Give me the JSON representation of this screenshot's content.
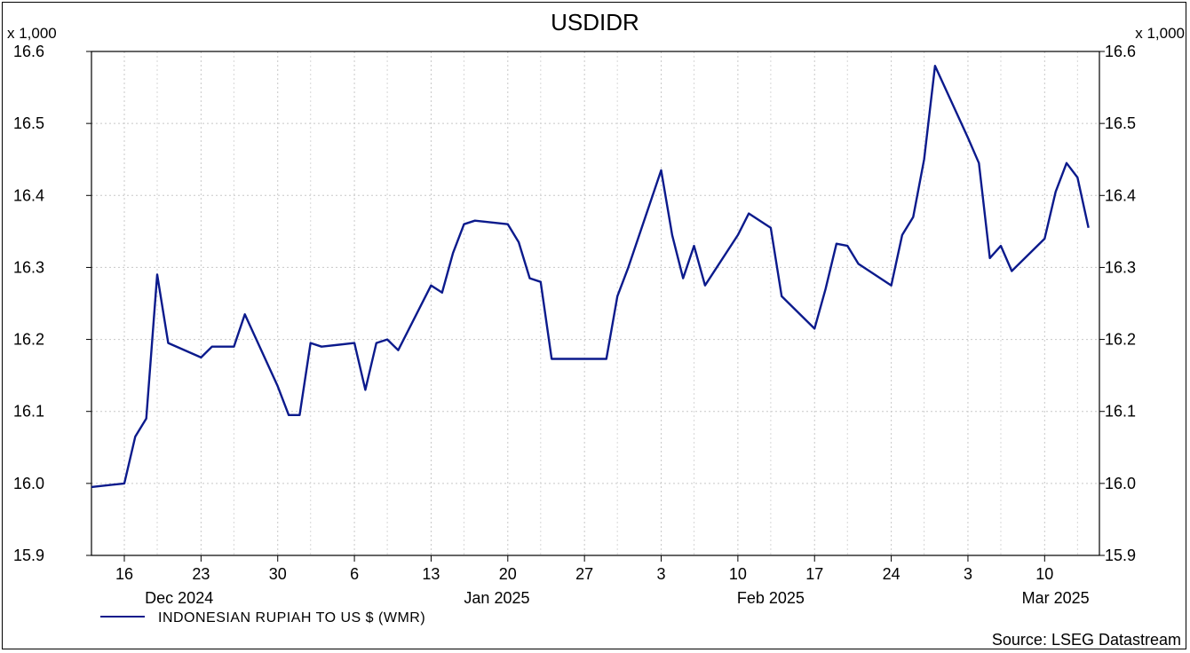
{
  "chart_data": {
    "type": "line",
    "title": "USDIDR",
    "y_multiplier_left": "x 1,000",
    "y_multiplier_right": "x 1,000",
    "ylim": [
      15.9,
      16.6
    ],
    "y_ticks": [
      "15.9",
      "16.0",
      "16.1",
      "16.2",
      "16.3",
      "16.4",
      "16.5",
      "16.6"
    ],
    "x_range": [
      "2024-12-13",
      "2025-03-15"
    ],
    "x_ticks": [
      {
        "date": "2024-12-16",
        "label": "16"
      },
      {
        "date": "2024-12-23",
        "label": "23"
      },
      {
        "date": "2024-12-30",
        "label": "30"
      },
      {
        "date": "2025-01-06",
        "label": "6"
      },
      {
        "date": "2025-01-13",
        "label": "13"
      },
      {
        "date": "2025-01-20",
        "label": "20"
      },
      {
        "date": "2025-01-27",
        "label": "27"
      },
      {
        "date": "2025-02-03",
        "label": "3"
      },
      {
        "date": "2025-02-10",
        "label": "10"
      },
      {
        "date": "2025-02-17",
        "label": "17"
      },
      {
        "date": "2025-02-24",
        "label": "24"
      },
      {
        "date": "2025-03-03",
        "label": "3"
      },
      {
        "date": "2025-03-10",
        "label": "10"
      }
    ],
    "month_labels": [
      {
        "date": "2024-12-21",
        "label": "Dec 2024"
      },
      {
        "date": "2025-01-19",
        "label": "Jan 2025"
      },
      {
        "date": "2025-02-13",
        "label": "Feb 2025"
      },
      {
        "date": "2025-03-11",
        "label": "Mar 2025"
      }
    ],
    "grid": true,
    "legend_position": "bottom-left",
    "source": "Source: LSEG Datastream",
    "series": [
      {
        "name": "INDONESIAN RUPIAH TO US $ (WMR)",
        "color": "#0b1a8c",
        "points": [
          [
            "2024-12-13",
            15.995
          ],
          [
            "2024-12-16",
            16.0
          ],
          [
            "2024-12-17",
            16.065
          ],
          [
            "2024-12-18",
            16.09
          ],
          [
            "2024-12-19",
            16.29
          ],
          [
            "2024-12-20",
            16.195
          ],
          [
            "2024-12-23",
            16.175
          ],
          [
            "2024-12-24",
            16.19
          ],
          [
            "2024-12-25",
            16.19
          ],
          [
            "2024-12-26",
            16.19
          ],
          [
            "2024-12-27",
            16.235
          ],
          [
            "2024-12-30",
            16.135
          ],
          [
            "2024-12-31",
            16.095
          ],
          [
            "2025-01-01",
            16.095
          ],
          [
            "2025-01-02",
            16.195
          ],
          [
            "2025-01-03",
            16.19
          ],
          [
            "2025-01-06",
            16.195
          ],
          [
            "2025-01-07",
            16.13
          ],
          [
            "2025-01-08",
            16.195
          ],
          [
            "2025-01-09",
            16.2
          ],
          [
            "2025-01-10",
            16.185
          ],
          [
            "2025-01-13",
            16.275
          ],
          [
            "2025-01-14",
            16.265
          ],
          [
            "2025-01-15",
            16.32
          ],
          [
            "2025-01-16",
            16.36
          ],
          [
            "2025-01-17",
            16.365
          ],
          [
            "2025-01-20",
            16.36
          ],
          [
            "2025-01-21",
            16.335
          ],
          [
            "2025-01-22",
            16.285
          ],
          [
            "2025-01-23",
            16.28
          ],
          [
            "2025-01-24",
            16.173
          ],
          [
            "2025-01-27",
            16.173
          ],
          [
            "2025-01-28",
            16.173
          ],
          [
            "2025-01-29",
            16.173
          ],
          [
            "2025-01-30",
            16.26
          ],
          [
            "2025-01-31",
            16.3
          ],
          [
            "2025-02-03",
            16.435
          ],
          [
            "2025-02-04",
            16.345
          ],
          [
            "2025-02-05",
            16.285
          ],
          [
            "2025-02-06",
            16.33
          ],
          [
            "2025-02-07",
            16.275
          ],
          [
            "2025-02-10",
            16.345
          ],
          [
            "2025-02-11",
            16.375
          ],
          [
            "2025-02-12",
            16.365
          ],
          [
            "2025-02-13",
            16.355
          ],
          [
            "2025-02-14",
            16.26
          ],
          [
            "2025-02-17",
            16.215
          ],
          [
            "2025-02-18",
            16.27
          ],
          [
            "2025-02-19",
            16.333
          ],
          [
            "2025-02-20",
            16.33
          ],
          [
            "2025-02-21",
            16.305
          ],
          [
            "2025-02-24",
            16.275
          ],
          [
            "2025-02-25",
            16.345
          ],
          [
            "2025-02-26",
            16.37
          ],
          [
            "2025-02-27",
            16.45
          ],
          [
            "2025-02-28",
            16.58
          ],
          [
            "2025-03-03",
            16.48
          ],
          [
            "2025-03-04",
            16.445
          ],
          [
            "2025-03-05",
            16.313
          ],
          [
            "2025-03-06",
            16.33
          ],
          [
            "2025-03-07",
            16.295
          ],
          [
            "2025-03-10",
            16.34
          ],
          [
            "2025-03-11",
            16.405
          ],
          [
            "2025-03-12",
            16.445
          ],
          [
            "2025-03-13",
            16.425
          ],
          [
            "2025-03-14",
            16.355
          ]
        ]
      }
    ]
  }
}
